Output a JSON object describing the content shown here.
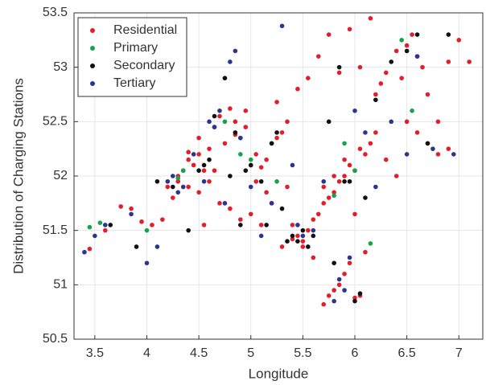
{
  "chart_data": {
    "type": "scatter",
    "x_label": "Longitude",
    "y_label": "Distribution of Charging Stations",
    "xlim": [
      3.3,
      7.23
    ],
    "ylim": [
      50.5,
      53.5
    ],
    "xticks": [
      3.5,
      4,
      4.5,
      5,
      5.5,
      6,
      6.5,
      7
    ],
    "yticks": [
      50.5,
      51,
      51.5,
      52,
      52.5,
      53,
      53.5
    ],
    "grid": true,
    "legend": "upper left",
    "series": [
      {
        "name": "Residential",
        "color": "#e31e2b",
        "x": [
          3.45,
          3.6,
          3.75,
          3.85,
          3.95,
          4.05,
          4.15,
          4.2,
          4.3,
          4.35,
          4.4,
          4.45,
          4.5,
          4.55,
          4.6,
          4.65,
          4.7,
          4.75,
          4.8,
          4.85,
          4.9,
          4.95,
          5.0,
          5.05,
          5.1,
          5.15,
          5.2,
          5.25,
          5.3,
          5.35,
          5.4,
          5.45,
          5.5,
          5.55,
          5.6,
          5.65,
          5.7,
          5.75,
          5.8,
          5.85,
          5.9,
          5.95,
          6.0,
          6.05,
          6.1,
          6.15,
          6.2,
          6.3,
          6.4,
          6.5,
          6.6,
          6.7,
          6.8,
          6.9,
          7.0,
          7.1,
          4.25,
          4.3,
          4.4,
          4.5,
          4.6,
          4.7,
          4.8,
          4.9,
          5.0,
          5.1,
          5.2,
          5.3,
          5.4,
          5.5,
          5.6,
          5.7,
          5.8,
          5.9,
          6.0,
          6.1,
          6.2,
          6.3,
          6.4,
          6.5,
          6.6,
          6.7,
          6.8,
          4.4,
          4.5,
          4.55,
          4.65,
          4.75,
          4.85,
          4.95,
          5.05,
          5.15,
          5.25,
          5.35,
          5.45,
          5.55,
          5.65,
          5.75,
          5.85,
          5.95,
          6.05,
          6.15,
          6.25,
          6.45,
          6.55,
          6.65,
          6.9,
          5.7,
          5.75,
          5.8,
          5.85,
          5.9,
          5.95,
          6.0,
          6.05
        ],
        "values": [
          51.33,
          51.5,
          51.72,
          51.7,
          51.58,
          51.55,
          51.6,
          51.9,
          51.95,
          52.05,
          52.15,
          52.1,
          52.2,
          52.05,
          52.25,
          52.45,
          52.55,
          52.3,
          52.62,
          52.38,
          52.35,
          52.45,
          52.1,
          52.2,
          52.08,
          52.15,
          52.3,
          52.68,
          52.4,
          51.9,
          51.42,
          51.45,
          51.4,
          51.5,
          51.6,
          51.65,
          51.75,
          51.8,
          51.85,
          51.95,
          52.0,
          52.1,
          52.05,
          52.25,
          52.2,
          52.3,
          52.4,
          52.15,
          52.0,
          52.5,
          52.4,
          52.3,
          52.2,
          52.25,
          53.25,
          53.05,
          51.8,
          52.0,
          51.9,
          51.85,
          51.95,
          51.75,
          51.7,
          51.6,
          51.65,
          51.55,
          51.75,
          51.35,
          51.55,
          51.35,
          51.25,
          51.9,
          52.0,
          52.15,
          51.65,
          51.3,
          52.75,
          52.95,
          53.15,
          53.2,
          53.1,
          52.75,
          52.5,
          52.22,
          52.35,
          51.55,
          52.05,
          52.9,
          52.5,
          52.6,
          51.95,
          51.85,
          52.35,
          52.5,
          52.8,
          52.9,
          53.1,
          53.3,
          52.95,
          53.35,
          53.0,
          53.45,
          52.85,
          52.9,
          53.3,
          53.0,
          53.05,
          50.82,
          50.9,
          50.95,
          51.0,
          51.1,
          51.2,
          50.88,
          50.9
        ]
      },
      {
        "name": "Primary",
        "color": "#16a44a",
        "x": [
          3.45,
          3.55,
          4.0,
          4.3,
          4.35,
          4.75,
          4.9,
          5.0,
          5.25,
          5.8,
          5.9,
          6.0,
          6.15,
          6.45,
          6.55
        ],
        "values": [
          51.53,
          51.57,
          51.5,
          51.98,
          52.05,
          52.5,
          52.2,
          52.15,
          51.95,
          51.82,
          52.3,
          52.05,
          51.38,
          53.25,
          52.6
        ]
      },
      {
        "name": "Secondary",
        "color": "#111111",
        "x": [
          3.65,
          3.9,
          4.1,
          4.25,
          4.4,
          4.5,
          4.6,
          4.65,
          4.75,
          4.8,
          4.9,
          5.0,
          5.1,
          5.2,
          5.25,
          5.3,
          5.35,
          5.4,
          5.45,
          5.5,
          5.55,
          5.6,
          5.75,
          5.8,
          5.85,
          5.9,
          6.0,
          6.05,
          6.1,
          6.2,
          6.35,
          6.5,
          6.6,
          6.7,
          6.9,
          4.55,
          4.95,
          5.15,
          5.95,
          4.85
        ],
        "values": [
          51.55,
          51.35,
          51.95,
          51.9,
          51.5,
          52.05,
          52.15,
          52.55,
          52.9,
          52.0,
          51.55,
          52.1,
          51.95,
          52.3,
          52.4,
          51.7,
          51.4,
          51.45,
          51.4,
          51.5,
          51.35,
          51.45,
          52.5,
          51.2,
          53.0,
          51.95,
          50.85,
          50.92,
          51.8,
          52.7,
          53.05,
          53.15,
          53.3,
          52.3,
          53.3,
          52.1,
          52.05,
          51.55,
          51.95,
          52.4
        ]
      },
      {
        "name": "Tertiary",
        "color": "#2a3590",
        "x": [
          3.4,
          3.5,
          3.6,
          3.85,
          4.0,
          4.1,
          4.2,
          4.25,
          4.3,
          4.35,
          4.45,
          4.55,
          4.65,
          4.7,
          4.8,
          4.85,
          4.9,
          5.0,
          5.1,
          5.2,
          5.3,
          5.4,
          5.5,
          5.6,
          5.7,
          5.8,
          5.85,
          5.95,
          6.0,
          6.1,
          6.2,
          6.35,
          6.5,
          6.6,
          6.75,
          6.95,
          4.6,
          4.75,
          5.45,
          5.9
        ],
        "values": [
          51.3,
          51.45,
          51.55,
          51.65,
          51.2,
          51.35,
          51.95,
          52.0,
          51.85,
          51.9,
          52.2,
          51.95,
          52.45,
          52.6,
          53.05,
          53.15,
          52.35,
          51.9,
          51.45,
          51.75,
          53.38,
          52.1,
          51.45,
          51.5,
          51.95,
          50.85,
          51.05,
          51.25,
          52.6,
          52.4,
          51.9,
          52.5,
          52.2,
          53.1,
          52.25,
          52.2,
          52.5,
          51.75,
          51.55,
          50.95
        ]
      }
    ]
  }
}
